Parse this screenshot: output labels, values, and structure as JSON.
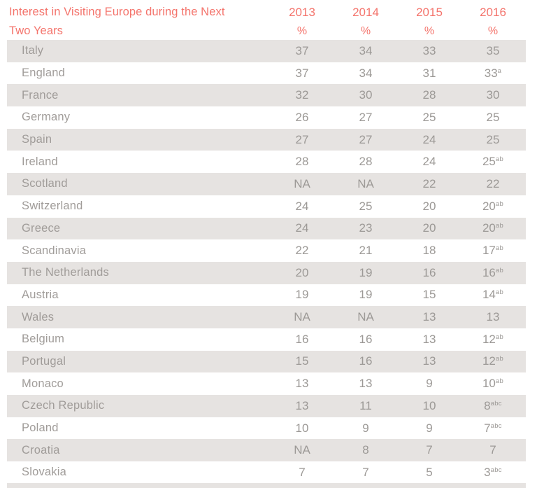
{
  "header": {
    "title_line1": "Interest in Visiting Europe during the Next",
    "title_line2": "Two Years"
  },
  "colors": {
    "accent_red": "#f4746c",
    "row_shade_gray": "#e6e3e1",
    "body_text_gray": "#9c9996"
  },
  "chart_data": {
    "type": "table",
    "title": "Interest in Visiting Europe during the Next Two Years",
    "columns": [
      {
        "year": "2013",
        "unit": "%"
      },
      {
        "year": "2014",
        "unit": "%"
      },
      {
        "year": "2015",
        "unit": "%"
      },
      {
        "year": "2016",
        "unit": "%"
      }
    ],
    "rows": [
      {
        "country": "Italy",
        "values": [
          "37",
          "34",
          "33",
          "35"
        ],
        "sups": [
          "",
          "",
          "",
          ""
        ]
      },
      {
        "country": "England",
        "values": [
          "37",
          "34",
          "31",
          "33"
        ],
        "sups": [
          "",
          "",
          "",
          "a"
        ]
      },
      {
        "country": "France",
        "values": [
          "32",
          "30",
          "28",
          "30"
        ],
        "sups": [
          "",
          "",
          "",
          ""
        ]
      },
      {
        "country": "Germany",
        "values": [
          "26",
          "27",
          "25",
          "25"
        ],
        "sups": [
          "",
          "",
          "",
          ""
        ]
      },
      {
        "country": "Spain",
        "values": [
          "27",
          "27",
          "24",
          "25"
        ],
        "sups": [
          "",
          "",
          "",
          ""
        ]
      },
      {
        "country": "Ireland",
        "values": [
          "28",
          "28",
          "24",
          "25"
        ],
        "sups": [
          "",
          "",
          "",
          "ab"
        ]
      },
      {
        "country": "Scotland",
        "values": [
          "NA",
          "NA",
          "22",
          "22"
        ],
        "sups": [
          "",
          "",
          "",
          ""
        ]
      },
      {
        "country": "Switzerland",
        "values": [
          "24",
          "25",
          "20",
          "20"
        ],
        "sups": [
          "",
          "",
          "",
          "ab"
        ]
      },
      {
        "country": "Greece",
        "values": [
          "24",
          "23",
          "20",
          "20"
        ],
        "sups": [
          "",
          "",
          "",
          "ab"
        ]
      },
      {
        "country": "Scandinavia",
        "values": [
          "22",
          "21",
          "18",
          "17"
        ],
        "sups": [
          "",
          "",
          "",
          "ab"
        ]
      },
      {
        "country": "The Netherlands",
        "values": [
          "20",
          "19",
          "16",
          "16"
        ],
        "sups": [
          "",
          "",
          "",
          "ab"
        ]
      },
      {
        "country": "Austria",
        "values": [
          "19",
          "19",
          "15",
          "14"
        ],
        "sups": [
          "",
          "",
          "",
          "ab"
        ]
      },
      {
        "country": "Wales",
        "values": [
          "NA",
          "NA",
          "13",
          "13"
        ],
        "sups": [
          "",
          "",
          "",
          ""
        ]
      },
      {
        "country": "Belgium",
        "values": [
          "16",
          "16",
          "13",
          "12"
        ],
        "sups": [
          "",
          "",
          "",
          "ab"
        ]
      },
      {
        "country": "Portugal",
        "values": [
          "15",
          "16",
          "13",
          "12"
        ],
        "sups": [
          "",
          "",
          "",
          "ab"
        ]
      },
      {
        "country": "Monaco",
        "values": [
          "13",
          "13",
          "9",
          "10"
        ],
        "sups": [
          "",
          "",
          "",
          "ab"
        ]
      },
      {
        "country": "Czech Republic",
        "values": [
          "13",
          "11",
          "10",
          "8"
        ],
        "sups": [
          "",
          "",
          "",
          "abc"
        ]
      },
      {
        "country": "Poland",
        "values": [
          "10",
          "9",
          "9",
          "7"
        ],
        "sups": [
          "",
          "",
          "",
          "abc"
        ]
      },
      {
        "country": "Croatia",
        "values": [
          "NA",
          "8",
          "7",
          "7"
        ],
        "sups": [
          "",
          "",
          "",
          ""
        ]
      },
      {
        "country": "Slovakia",
        "values": [
          "7",
          "7",
          "5",
          "3"
        ],
        "sups": [
          "",
          "",
          "",
          "abc"
        ]
      }
    ]
  }
}
